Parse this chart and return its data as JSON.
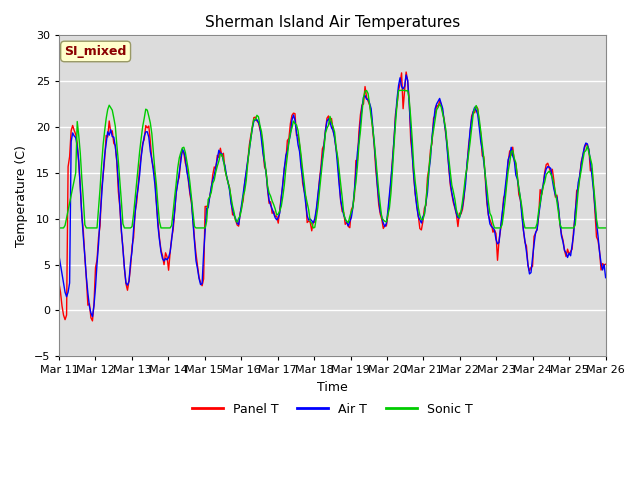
{
  "title": "Sherman Island Air Temperatures",
  "xlabel": "Time",
  "ylabel": "Temperature (C)",
  "annotation": "SI_mixed",
  "ylim": [
    -5,
    30
  ],
  "bg_color": "#dcdcdc",
  "fig_color": "#ffffff",
  "grid_color": "#ffffff",
  "series_colors": {
    "panel": "#ff0000",
    "air": "#0000ff",
    "sonic": "#00cc00"
  },
  "x_tick_labels": [
    "Mar 11",
    "Mar 12",
    "Mar 13",
    "Mar 14",
    "Mar 15",
    "Mar 16",
    "Mar 17",
    "Mar 18",
    "Mar 19",
    "Mar 20",
    "Mar 21",
    "Mar 22",
    "Mar 23",
    "Mar 24",
    "Mar 25",
    "Mar 26"
  ],
  "y_ticks": [
    -5,
    0,
    5,
    10,
    15,
    20,
    25,
    30
  ],
  "legend_entries": [
    "Panel T",
    "Air T",
    "Sonic T"
  ],
  "title_fontsize": 11,
  "axis_fontsize": 9,
  "tick_fontsize": 8
}
